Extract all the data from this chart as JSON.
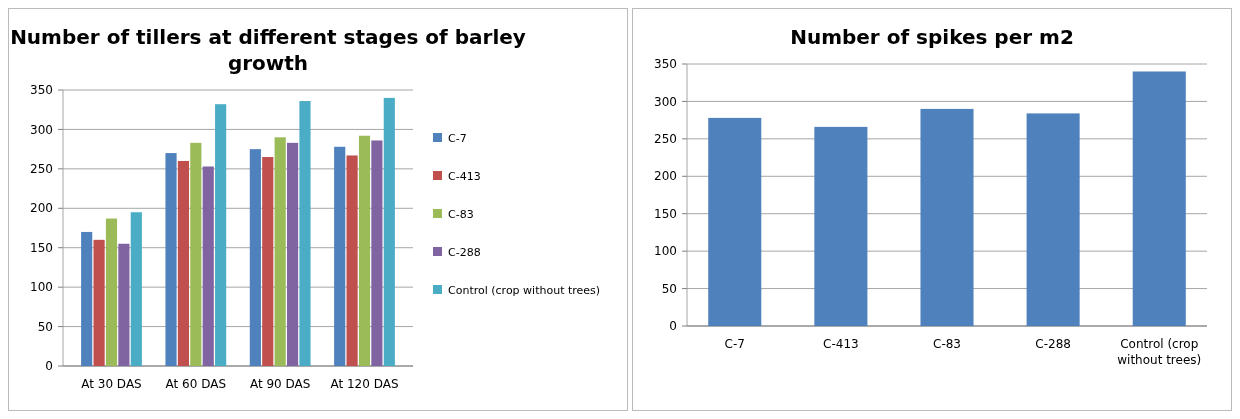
{
  "chart_data": [
    {
      "type": "bar",
      "title": "Number of tillers at different stages of barley growth",
      "categories": [
        "At 30 DAS",
        "At 60 DAS",
        "At 90 DAS",
        "At 120 DAS"
      ],
      "series": [
        {
          "name": "C-7",
          "color": "#4f81bd",
          "values": [
            170,
            270,
            275,
            278
          ]
        },
        {
          "name": "C-413",
          "color": "#c0504d",
          "values": [
            160,
            260,
            265,
            267
          ]
        },
        {
          "name": "C-83",
          "color": "#9bbb59",
          "values": [
            187,
            283,
            290,
            292
          ]
        },
        {
          "name": "C-288",
          "color": "#8064a2",
          "values": [
            155,
            253,
            283,
            286
          ]
        },
        {
          "name": "Control (crop without trees)",
          "color": "#4bacc6",
          "values": [
            195,
            332,
            336,
            340
          ]
        }
      ],
      "ylim": [
        0,
        350
      ],
      "yticks": [
        0,
        50,
        100,
        150,
        200,
        250,
        300,
        350
      ],
      "grid": "y",
      "legend": "right"
    },
    {
      "type": "bar",
      "title": "Number of spikes per m2",
      "categories": [
        "C-7",
        "C-413",
        "C-83",
        "C-288",
        "Control (crop without trees)"
      ],
      "values": [
        278,
        266,
        290,
        284,
        340
      ],
      "color": "#4f81bd",
      "ylim": [
        0,
        350
      ],
      "yticks": [
        0,
        50,
        100,
        150,
        200,
        250,
        300,
        350
      ],
      "grid": "y"
    }
  ]
}
